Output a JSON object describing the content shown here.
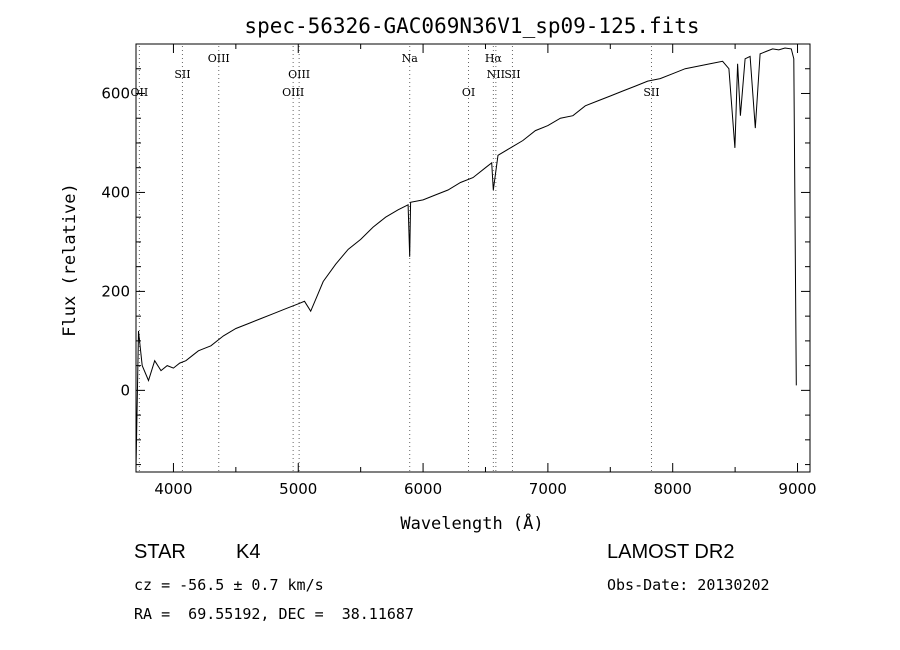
{
  "chart_data": {
    "type": "line",
    "title": "spec-56326-GAC069N36V1_sp09-125.fits",
    "xlabel": "Wavelength (Å)",
    "ylabel": "Flux (relative)",
    "xlim": [
      3700,
      9100
    ],
    "ylim": [
      -165,
      700
    ],
    "x_ticks": [
      4000,
      5000,
      6000,
      7000,
      8000,
      9000
    ],
    "x_tick_labels": [
      "4000",
      "5000",
      "6000",
      "7000",
      "8000",
      "9000"
    ],
    "y_ticks": [
      0,
      200,
      400,
      600
    ],
    "y_tick_labels": [
      "0",
      "200",
      "400",
      "600"
    ],
    "grid": false,
    "line_color": "#000000",
    "series": [
      {
        "x": [
          3700,
          3720,
          3750,
          3800,
          3850,
          3900,
          3950,
          4000,
          4050,
          4100,
          4150,
          4200,
          4250,
          4300,
          4400,
          4500,
          4600,
          4700,
          4800,
          4900,
          5000,
          5050,
          5100,
          5150,
          5200,
          5300,
          5400,
          5500,
          5600,
          5700,
          5800,
          5880,
          5893,
          5900,
          6000,
          6100,
          6200,
          6300,
          6400,
          6500,
          6550,
          6563,
          6600,
          6700,
          6800,
          6900,
          7000,
          7100,
          7200,
          7300,
          7400,
          7500,
          7600,
          7700,
          7800,
          7900,
          8000,
          8100,
          8200,
          8300,
          8400,
          8450,
          8498,
          8520,
          8542,
          8580,
          8620,
          8662,
          8700,
          8750,
          8800,
          8850,
          8900,
          8950,
          8970,
          8990
        ],
        "y": [
          -160,
          120,
          50,
          20,
          60,
          40,
          50,
          45,
          55,
          60,
          70,
          80,
          85,
          90,
          110,
          125,
          135,
          145,
          155,
          165,
          175,
          180,
          160,
          190,
          220,
          255,
          285,
          305,
          330,
          350,
          365,
          375,
          270,
          380,
          385,
          395,
          405,
          420,
          430,
          450,
          460,
          405,
          475,
          490,
          505,
          525,
          535,
          550,
          555,
          575,
          585,
          595,
          605,
          615,
          625,
          630,
          640,
          650,
          655,
          660,
          665,
          650,
          490,
          660,
          555,
          670,
          675,
          530,
          680,
          685,
          690,
          688,
          692,
          690,
          670,
          10
        ]
      }
    ],
    "line_markers": [
      {
        "label": "OII",
        "x": 3727,
        "row": 2
      },
      {
        "label": "SII",
        "x": 4072,
        "row": 1
      },
      {
        "label": "OIII",
        "x": 4363,
        "row": 0
      },
      {
        "label": "OIII",
        "x": 4959,
        "row": 2
      },
      {
        "label": "OIII",
        "x": 5007,
        "row": 1
      },
      {
        "label": "Na",
        "x": 5893,
        "row": 0
      },
      {
        "label": "OI",
        "x": 6364,
        "row": 2
      },
      {
        "label": "Hα",
        "x": 6563,
        "row": 0
      },
      {
        "label": "NII",
        "x": 6583,
        "row": 1
      },
      {
        "label": "SII",
        "x": 6716,
        "row": 1
      },
      {
        "label": "SII",
        "x": 7830,
        "row": 2
      }
    ]
  },
  "footer": {
    "class_label": "STAR",
    "subclass": "K4",
    "redshift": "cz = -56.5 ± 0.7 km/s",
    "coords": "RA =  69.55192, DEC =  38.11687",
    "survey": "LAMOST DR2",
    "obs_date": "Obs-Date: 20130202"
  }
}
